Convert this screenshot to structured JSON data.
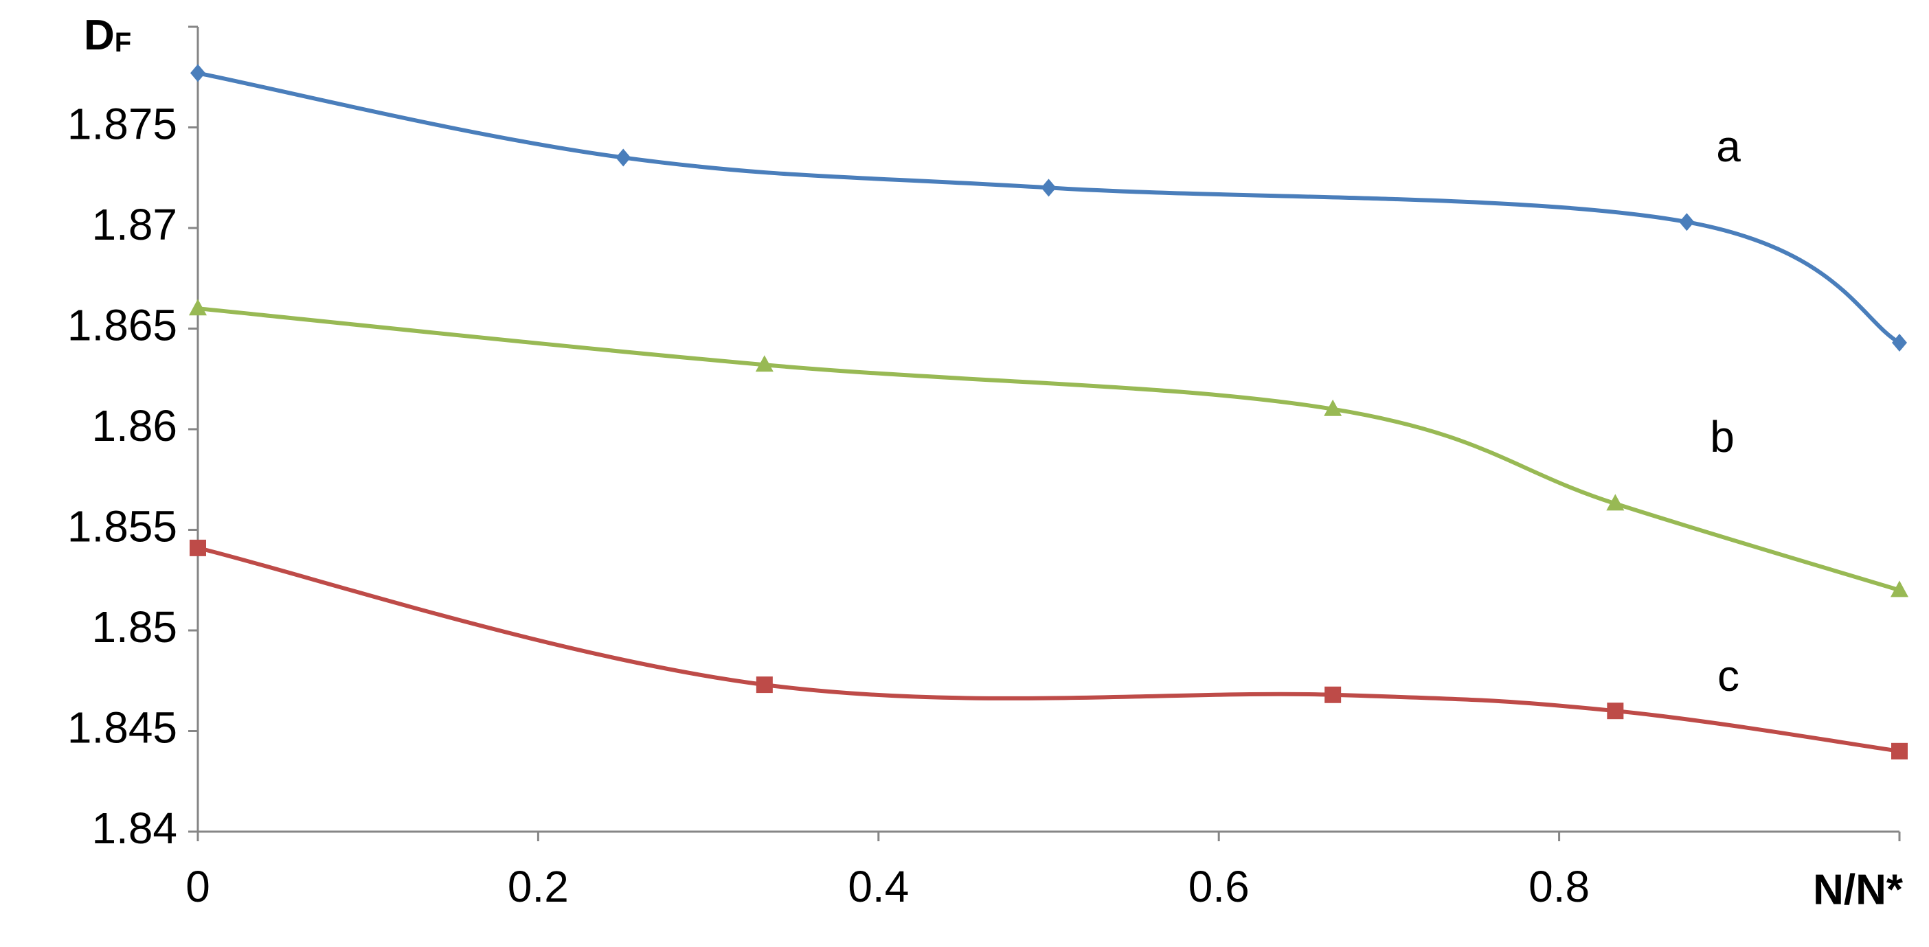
{
  "chart_data": {
    "type": "line",
    "y_label": {
      "text": "D",
      "subscript": "F"
    },
    "x_label": "N/N*",
    "xlim": [
      0,
      1
    ],
    "xticks": [
      0,
      0.2,
      0.4,
      0.6,
      0.8
    ],
    "ylim": [
      1.84,
      1.88
    ],
    "yticks": [
      1.84,
      1.845,
      1.85,
      1.855,
      1.86,
      1.865,
      1.87,
      1.875
    ],
    "grid": false,
    "series": [
      {
        "name": "a",
        "color": "#4a7ebb",
        "marker": "diamond",
        "x": [
          0,
          0.25,
          0.5,
          0.875,
          1
        ],
        "values": [
          1.8777,
          1.8735,
          1.872,
          1.8703,
          1.8643
        ]
      },
      {
        "name": "b",
        "color": "#98b954",
        "marker": "triangle",
        "x": [
          0,
          0.333,
          0.667,
          0.833,
          1
        ],
        "values": [
          1.866,
          1.8632,
          1.861,
          1.8563,
          1.852
        ]
      },
      {
        "name": "c",
        "color": "#be4b48",
        "marker": "square",
        "x": [
          0,
          0.333,
          0.667,
          0.833,
          1
        ],
        "values": [
          1.8541,
          1.8473,
          1.8468,
          1.846,
          1.844
        ]
      }
    ]
  }
}
